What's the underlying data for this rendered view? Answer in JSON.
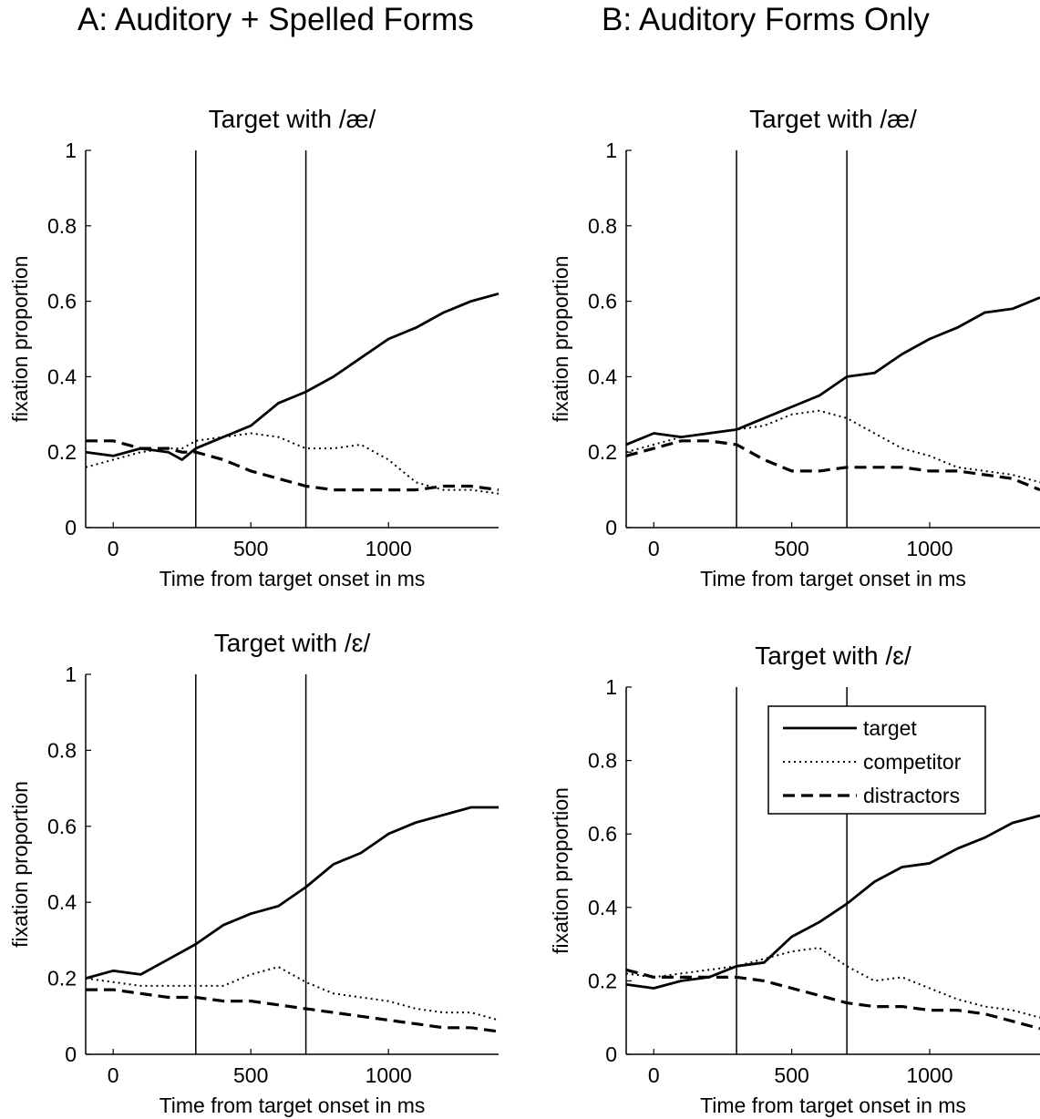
{
  "figure": {
    "panel_a_title": "A: Auditory + Spelled Forms",
    "panel_b_title": "B: Auditory Forms Only"
  },
  "legend": [
    "target",
    "competitor",
    "distractors"
  ],
  "chart_data": [
    {
      "type": "line",
      "title": "Target with /æ/",
      "xlabel": "Time from target onset in ms",
      "ylabel": "fixation proportion",
      "xlim": [
        -100,
        1400
      ],
      "ylim": [
        0,
        1
      ],
      "xticks": [
        0,
        500,
        1000
      ],
      "yticks": [
        0,
        0.2,
        0.4,
        0.6,
        0.8,
        1
      ],
      "vlines": [
        300,
        700
      ],
      "x": [
        -100,
        0,
        100,
        200,
        250,
        300,
        400,
        500,
        600,
        700,
        800,
        900,
        1000,
        1100,
        1200,
        1300,
        1400
      ],
      "series": [
        {
          "name": "target",
          "values": [
            0.2,
            0.19,
            0.21,
            0.2,
            0.18,
            0.21,
            0.24,
            0.27,
            0.33,
            0.36,
            0.4,
            0.45,
            0.5,
            0.53,
            0.57,
            0.6,
            0.62
          ]
        },
        {
          "name": "competitor",
          "values": [
            0.16,
            0.18,
            0.2,
            0.21,
            0.21,
            0.23,
            0.24,
            0.25,
            0.24,
            0.21,
            0.21,
            0.22,
            0.18,
            0.12,
            0.1,
            0.1,
            0.09
          ]
        },
        {
          "name": "distractors",
          "values": [
            0.23,
            0.23,
            0.21,
            0.21,
            0.2,
            0.2,
            0.18,
            0.15,
            0.13,
            0.11,
            0.1,
            0.1,
            0.1,
            0.1,
            0.11,
            0.11,
            0.1
          ]
        }
      ]
    },
    {
      "type": "line",
      "title": "Target with /æ/",
      "xlabel": "Time from target onset in ms",
      "ylabel": "fixation proportion",
      "xlim": [
        -100,
        1400
      ],
      "ylim": [
        0,
        1
      ],
      "xticks": [
        0,
        500,
        1000
      ],
      "yticks": [
        0,
        0.2,
        0.4,
        0.6,
        0.8,
        1
      ],
      "vlines": [
        300,
        700
      ],
      "x": [
        -100,
        0,
        100,
        200,
        300,
        400,
        500,
        600,
        700,
        800,
        900,
        1000,
        1100,
        1200,
        1300,
        1400
      ],
      "series": [
        {
          "name": "target",
          "values": [
            0.22,
            0.25,
            0.24,
            0.25,
            0.26,
            0.29,
            0.32,
            0.35,
            0.4,
            0.41,
            0.46,
            0.5,
            0.53,
            0.57,
            0.58,
            0.61
          ]
        },
        {
          "name": "competitor",
          "values": [
            0.2,
            0.22,
            0.24,
            0.25,
            0.26,
            0.27,
            0.3,
            0.31,
            0.29,
            0.25,
            0.21,
            0.19,
            0.16,
            0.15,
            0.14,
            0.12
          ]
        },
        {
          "name": "distractors",
          "values": [
            0.19,
            0.21,
            0.23,
            0.23,
            0.22,
            0.18,
            0.15,
            0.15,
            0.16,
            0.16,
            0.16,
            0.15,
            0.15,
            0.14,
            0.13,
            0.1
          ]
        }
      ]
    },
    {
      "type": "line",
      "title": "Target with /ɛ/",
      "xlabel": "Time from target onset in ms",
      "ylabel": "fixation proportion",
      "xlim": [
        -100,
        1400
      ],
      "ylim": [
        0,
        1
      ],
      "xticks": [
        0,
        500,
        1000
      ],
      "yticks": [
        0,
        0.2,
        0.4,
        0.6,
        0.8,
        1
      ],
      "vlines": [
        300,
        700
      ],
      "x": [
        -100,
        0,
        100,
        200,
        300,
        400,
        500,
        600,
        700,
        800,
        900,
        1000,
        1100,
        1200,
        1300,
        1400
      ],
      "series": [
        {
          "name": "target",
          "values": [
            0.2,
            0.22,
            0.21,
            0.25,
            0.29,
            0.34,
            0.37,
            0.39,
            0.44,
            0.5,
            0.53,
            0.58,
            0.61,
            0.63,
            0.65,
            0.65
          ]
        },
        {
          "name": "competitor",
          "values": [
            0.2,
            0.19,
            0.18,
            0.18,
            0.18,
            0.18,
            0.21,
            0.23,
            0.19,
            0.16,
            0.15,
            0.14,
            0.12,
            0.11,
            0.11,
            0.09
          ]
        },
        {
          "name": "distractors",
          "values": [
            0.17,
            0.17,
            0.16,
            0.15,
            0.15,
            0.14,
            0.14,
            0.13,
            0.12,
            0.11,
            0.1,
            0.09,
            0.08,
            0.07,
            0.07,
            0.06
          ]
        }
      ]
    },
    {
      "type": "line",
      "title": "Target with /ɛ/",
      "xlabel": "Time from target onset in ms",
      "ylabel": "fixation proportion",
      "xlim": [
        -100,
        1400
      ],
      "ylim": [
        0,
        1
      ],
      "xticks": [
        0,
        500,
        1000
      ],
      "yticks": [
        0,
        0.2,
        0.4,
        0.6,
        0.8,
        1
      ],
      "vlines": [
        300,
        700
      ],
      "legend_position": "top-right",
      "x": [
        -100,
        0,
        100,
        200,
        300,
        400,
        500,
        600,
        700,
        800,
        900,
        1000,
        1100,
        1200,
        1300,
        1400
      ],
      "series": [
        {
          "name": "target",
          "values": [
            0.19,
            0.18,
            0.2,
            0.21,
            0.24,
            0.25,
            0.32,
            0.36,
            0.41,
            0.47,
            0.51,
            0.52,
            0.56,
            0.59,
            0.63,
            0.65
          ]
        },
        {
          "name": "competitor",
          "values": [
            0.22,
            0.21,
            0.22,
            0.23,
            0.24,
            0.26,
            0.28,
            0.29,
            0.24,
            0.2,
            0.21,
            0.18,
            0.15,
            0.13,
            0.12,
            0.1
          ]
        },
        {
          "name": "distractors",
          "values": [
            0.23,
            0.21,
            0.21,
            0.21,
            0.21,
            0.2,
            0.18,
            0.16,
            0.14,
            0.13,
            0.13,
            0.12,
            0.12,
            0.11,
            0.09,
            0.07
          ]
        }
      ]
    }
  ]
}
